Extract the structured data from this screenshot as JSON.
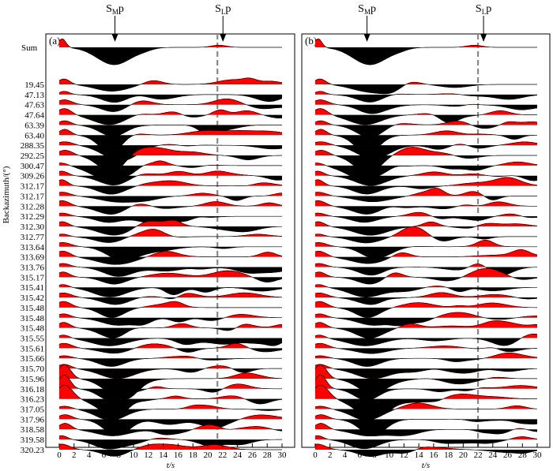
{
  "chart_data": {
    "type": "line",
    "description_of_series": "receiver function traces",
    "xlabel": "t/s",
    "ylabel": "Backazimuth/(°)",
    "xlim": [
      0,
      30
    ],
    "x_ticks": [
      0,
      2,
      4,
      6,
      8,
      10,
      12,
      14,
      16,
      18,
      20,
      22,
      24,
      26,
      28,
      30
    ],
    "fill_positive_color": "#ff0000",
    "fill_negative_color": "#000000",
    "dashed_line_color": "#888888",
    "sum_label": "Sum",
    "backazimuths": [
      "19.45",
      "47.13",
      "47.63",
      "47.64",
      "63.39",
      "63.40",
      "288.35",
      "292.25",
      "300.47",
      "309.26",
      "312.17",
      "312.17",
      "312.28",
      "312.29",
      "312.30",
      "312.77",
      "313.64",
      "313.69",
      "313.76",
      "315.17",
      "315.41",
      "315.42",
      "315.48",
      "315.48",
      "315.48",
      "315.55",
      "315.61",
      "315.66",
      "315.70",
      "315.96",
      "316.18",
      "316.23",
      "317.05",
      "317.96",
      "318.58",
      "319.58",
      "320.23"
    ],
    "panels": [
      {
        "letter": "(a)",
        "smp_label": "S",
        "smp_sub": "M",
        "smp_suffix": "p",
        "smp_time": 7.5,
        "slp_label": "S",
        "slp_sub": "L",
        "slp_suffix": "p",
        "slp_time": 21.3
      },
      {
        "letter": "(b)",
        "smp_label": "S",
        "smp_sub": "M",
        "smp_suffix": "p",
        "smp_time": 7.0,
        "slp_label": "S",
        "slp_sub": "L",
        "slp_suffix": "p",
        "slp_time": 22.0
      }
    ]
  }
}
